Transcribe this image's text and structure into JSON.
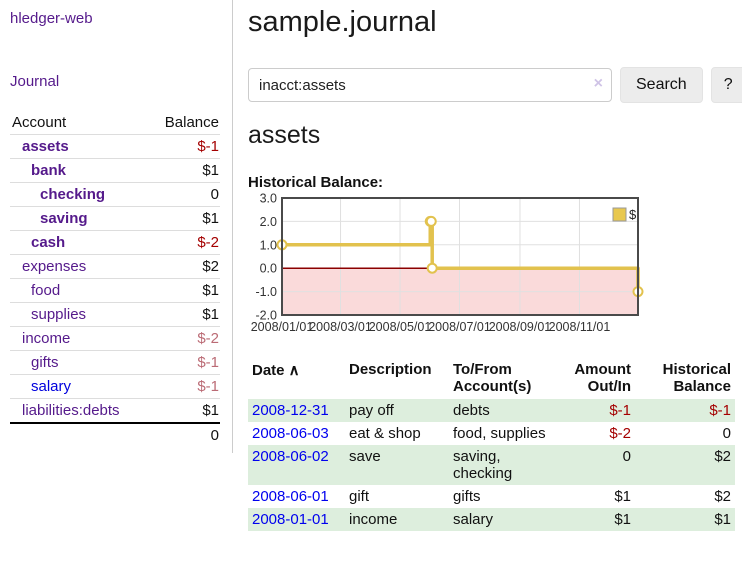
{
  "sidebar": {
    "app_title": "hledger-web",
    "journal_link": "Journal",
    "accounts_header": {
      "account": "Account",
      "balance": "Balance"
    },
    "accounts": [
      {
        "name": "assets",
        "balance": "$-1",
        "depth": 1,
        "bold": true,
        "balance_style": "neg"
      },
      {
        "name": "bank",
        "balance": "$1",
        "depth": 2,
        "bold": true,
        "balance_style": "pos"
      },
      {
        "name": "checking",
        "balance": "0",
        "depth": 3,
        "bold": true,
        "balance_style": "pos"
      },
      {
        "name": "saving",
        "balance": "$1",
        "depth": 3,
        "bold": true,
        "balance_style": "pos"
      },
      {
        "name": "cash",
        "balance": "$-2",
        "depth": 2,
        "bold": true,
        "balance_style": "neg"
      },
      {
        "name": "expenses",
        "balance": "$2",
        "depth": 1,
        "bold": false,
        "balance_style": "pos"
      },
      {
        "name": "food",
        "balance": "$1",
        "depth": 2,
        "bold": false,
        "balance_style": "pos"
      },
      {
        "name": "supplies",
        "balance": "$1",
        "depth": 2,
        "bold": false,
        "balance_style": "pos"
      },
      {
        "name": "income",
        "balance": "$-2",
        "depth": 1,
        "bold": false,
        "balance_style": "neg-light"
      },
      {
        "name": "gifts",
        "balance": "$-1",
        "depth": 2,
        "bold": false,
        "balance_style": "neg-light"
      },
      {
        "name": "salary",
        "balance": "$-1",
        "depth": 2,
        "bold": false,
        "balance_style": "neg-light",
        "link_color": "blue"
      },
      {
        "name": "liabilities:debts",
        "balance": "$1",
        "depth": 1,
        "bold": false,
        "balance_style": "pos"
      }
    ],
    "total": "0"
  },
  "main": {
    "title": "sample.journal",
    "account_heading": "assets"
  },
  "search": {
    "value": "inacct:assets",
    "clear_icon": "×",
    "button_label": "Search",
    "help_label": "?"
  },
  "chart_data": {
    "type": "line",
    "title": "Historical Balance:",
    "step": true,
    "grid": true,
    "x_range": [
      "2008-01-01",
      "2008-12-31"
    ],
    "ylim": [
      -2,
      3
    ],
    "y_ticks": [
      {
        "label": "3.0",
        "value": 3
      },
      {
        "label": "2.0",
        "value": 2
      },
      {
        "label": "1.0",
        "value": 1
      },
      {
        "label": "0.0",
        "value": 0
      },
      {
        "label": "-1.0",
        "value": -1
      },
      {
        "label": "-2.0",
        "value": -2
      }
    ],
    "x_ticks": [
      {
        "label": "2008/01/01",
        "date": "2008-01-01"
      },
      {
        "label": "2008/03/01",
        "date": "2008-03-01"
      },
      {
        "label": "2008/05/01",
        "date": "2008-05-01"
      },
      {
        "label": "2008/07/01",
        "date": "2008-07-01"
      },
      {
        "label": "2008/09/01",
        "date": "2008-09-01"
      },
      {
        "label": "2008/11/01",
        "date": "2008-11-01"
      }
    ],
    "series": [
      {
        "name": "$",
        "color": "#e2c24e",
        "points": [
          [
            "2008-01-01",
            1
          ],
          [
            "2008-06-01",
            2
          ],
          [
            "2008-06-02",
            2
          ],
          [
            "2008-06-03",
            0
          ],
          [
            "2008-12-31",
            -1
          ]
        ]
      }
    ],
    "legend": {
      "label": "$",
      "position": "top-right",
      "swatch_color": "#e8c84f"
    },
    "negative_region_color": "#fadada",
    "zero_line_color": "#8b0000",
    "border_color": "#4a4a4a",
    "grid_color": "#e0e0e0"
  },
  "register": {
    "headers": [
      {
        "label": "Date",
        "sort_arrow": "∧",
        "align": "left"
      },
      {
        "label": "Description",
        "align": "left"
      },
      {
        "label": "To/From Account(s)",
        "align": "left"
      },
      {
        "label": "Amount Out/In",
        "align": "right"
      },
      {
        "label": "Historical Balance",
        "align": "right"
      }
    ],
    "rows": [
      {
        "date": "2008-12-31",
        "description": "pay off",
        "accounts": "debts",
        "amount": "$-1",
        "amount_neg": true,
        "balance": "$-1",
        "balance_neg": true
      },
      {
        "date": "2008-06-03",
        "description": "eat & shop",
        "accounts": "food, supplies",
        "amount": "$-2",
        "amount_neg": true,
        "balance": "0",
        "balance_neg": false
      },
      {
        "date": "2008-06-02",
        "description": "save",
        "accounts": "saving, checking",
        "amount": "0",
        "amount_neg": false,
        "balance": "$2",
        "balance_neg": false
      },
      {
        "date": "2008-06-01",
        "description": "gift",
        "accounts": "gifts",
        "amount": "$1",
        "amount_neg": false,
        "balance": "$2",
        "balance_neg": false
      },
      {
        "date": "2008-01-01",
        "description": "income",
        "accounts": "salary",
        "amount": "$1",
        "amount_neg": false,
        "balance": "$1",
        "balance_neg": false
      }
    ]
  },
  "colors": {
    "link_purple": "#551a8b",
    "link_blue": "#0000dd",
    "negative_red": "#a40000",
    "negative_light_red": "#bb6b75",
    "stripe_green": "#ddeedd"
  }
}
